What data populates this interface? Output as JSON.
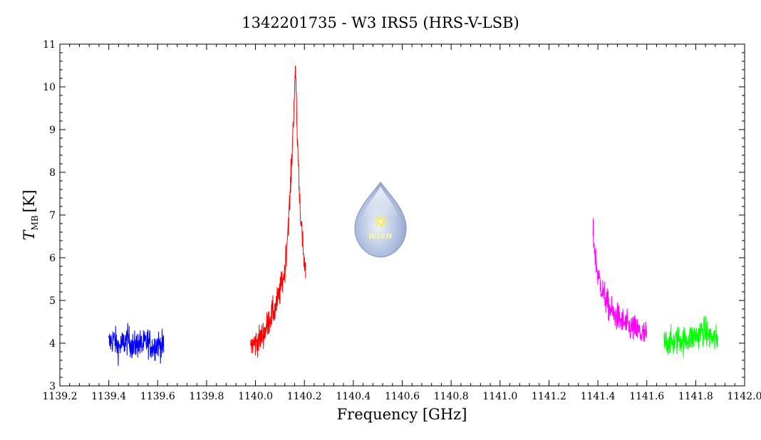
{
  "chart_data": {
    "type": "line",
    "title": "1342201735 - W3 IRS5 (HRS-V-LSB)",
    "xlabel": "Frequency [GHz]",
    "ylabel_main": "T",
    "ylabel_sub": "MB",
    "ylabel_unit": "[K]",
    "xlim": [
      1139.2,
      1142.0
    ],
    "ylim": [
      3,
      11
    ],
    "xticks": [
      1139.2,
      1139.4,
      1139.6,
      1139.8,
      1140.0,
      1140.2,
      1140.4,
      1140.6,
      1140.8,
      1141.0,
      1141.2,
      1141.4,
      1141.6,
      1141.8,
      1142.0
    ],
    "xtick_labels": [
      "1139.2",
      "1139.4",
      "1139.6",
      "1139.8",
      "1140.0",
      "1140.2",
      "1140.4",
      "1140.6",
      "1140.8",
      "1141.0",
      "1141.2",
      "1141.4",
      "1141.6",
      "1141.8",
      "1142.0"
    ],
    "yticks": [
      3,
      4,
      5,
      6,
      7,
      8,
      9,
      10,
      11
    ],
    "ytick_labels": [
      "3",
      "4",
      "5",
      "6",
      "7",
      "8",
      "9",
      "10",
      "11"
    ],
    "grid": false,
    "series": [
      {
        "color": "#0000ff",
        "x": [
          1139.4,
          1139.42,
          1139.44,
          1139.46,
          1139.48,
          1139.5,
          1139.52,
          1139.54,
          1139.56,
          1139.58,
          1139.6,
          1139.625
        ],
        "y": [
          4.0,
          4.1,
          3.9,
          4.0,
          4.1,
          3.9,
          4.0,
          3.95,
          4.05,
          3.9,
          4.0,
          3.9
        ]
      },
      {
        "color": "#ff0000",
        "x": [
          1139.98,
          1140.0,
          1140.02,
          1140.04,
          1140.06,
          1140.08,
          1140.1,
          1140.12,
          1140.13,
          1140.14,
          1140.15,
          1140.16,
          1140.165,
          1140.17,
          1140.18,
          1140.19,
          1140.2,
          1140.205
        ],
        "y": [
          3.95,
          4.0,
          4.1,
          4.3,
          4.6,
          4.8,
          5.2,
          5.7,
          6.5,
          7.3,
          8.5,
          10.0,
          10.3,
          9.0,
          7.5,
          6.5,
          5.8,
          5.6
        ]
      },
      {
        "color": "#ff00ff",
        "x": [
          1141.38,
          1141.39,
          1141.4,
          1141.42,
          1141.44,
          1141.46,
          1141.48,
          1141.5,
          1141.52,
          1141.54,
          1141.56,
          1141.58,
          1141.6
        ],
        "y": [
          6.6,
          6.0,
          5.6,
          5.2,
          4.9,
          4.7,
          4.6,
          4.5,
          4.4,
          4.35,
          4.3,
          4.2,
          4.2
        ]
      },
      {
        "color": "#00ff00",
        "x": [
          1141.67,
          1141.69,
          1141.71,
          1141.73,
          1141.75,
          1141.77,
          1141.79,
          1141.81,
          1141.83,
          1141.85,
          1141.87,
          1141.89
        ],
        "y": [
          4.0,
          4.05,
          4.0,
          4.1,
          4.05,
          4.1,
          4.15,
          4.2,
          4.3,
          4.2,
          4.1,
          4.05
        ]
      }
    ]
  },
  "logo": {
    "text": "WISH",
    "icon": "water-drop-logo-icon"
  }
}
